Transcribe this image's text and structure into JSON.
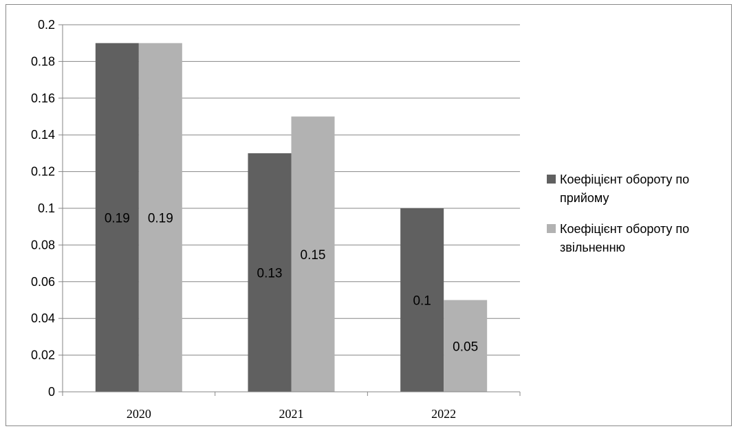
{
  "chart_data": {
    "type": "bar",
    "categories": [
      "2020",
      "2021",
      "2022"
    ],
    "series": [
      {
        "name": "Коефіцієнт обороту по прийому",
        "values": [
          0.19,
          0.13,
          0.1
        ],
        "labels": [
          "0.19",
          "0.13",
          "0.1"
        ],
        "color": "#606060"
      },
      {
        "name": "Коефіцієнт обороту по звільненню",
        "values": [
          0.19,
          0.15,
          0.05
        ],
        "labels": [
          "0.19",
          "0.15",
          "0.05"
        ],
        "color": "#b2b2b2"
      }
    ],
    "legend_lines": [
      [
        "Коефіцієнт обороту по",
        "прийому"
      ],
      [
        "Коефіцієнт обороту по",
        "звільненню"
      ]
    ],
    "ylim": [
      0,
      0.2
    ],
    "y_ticks": [
      "0",
      "0.02",
      "0.04",
      "0.06",
      "0.08",
      "0.1",
      "0.12",
      "0.14",
      "0.16",
      "0.18",
      "0.2"
    ],
    "grid": true,
    "legend_position": "right",
    "title": "",
    "xlabel": "",
    "ylabel": ""
  }
}
